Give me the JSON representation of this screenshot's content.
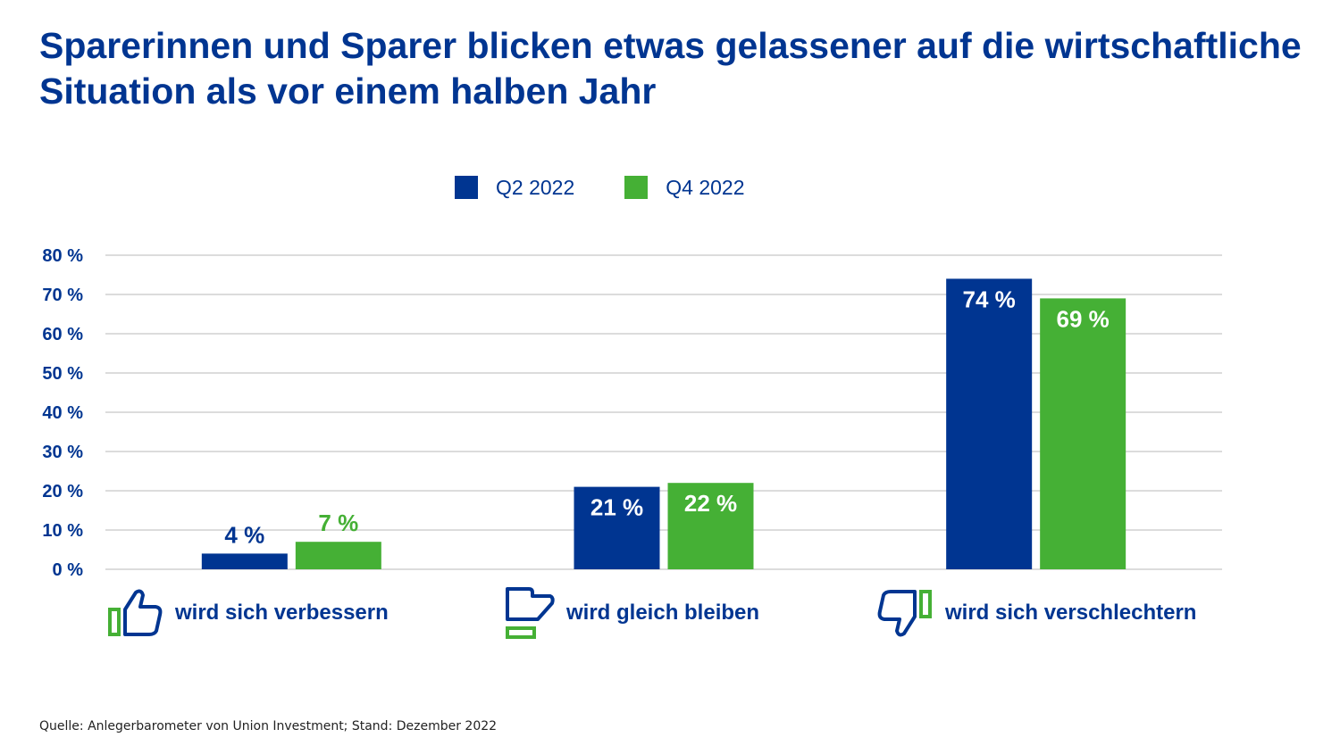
{
  "title": "Sparerinnen und Sparer blicken etwas gelassener auf die wirtschaftliche Situation als vor einem halben Jahr",
  "source": "Quelle: Anlegerbarometer von Union Investment; Stand: Dezember 2022",
  "colors": {
    "primary": "#003591",
    "secondary": "#45b035",
    "grid": "#c8c8c8"
  },
  "chart_data": {
    "type": "bar",
    "title": "Sparerinnen und Sparer blicken etwas gelassener auf die wirtschaftliche Situation als vor einem halben Jahr",
    "categories": [
      "wird sich verbessern",
      "wird gleich bleiben",
      "wird sich verschlechtern"
    ],
    "category_icons": [
      "thumbs-up-icon",
      "thumbs-sideways-icon",
      "thumbs-down-icon"
    ],
    "series": [
      {
        "name": "Q2 2022",
        "values": [
          4,
          21,
          74
        ],
        "labels": [
          "4 %",
          "21 %",
          "74 %"
        ],
        "color": "#003591"
      },
      {
        "name": "Q4 2022",
        "values": [
          7,
          22,
          69
        ],
        "labels": [
          "7 %",
          "22 %",
          "69 %"
        ],
        "color": "#45b035"
      }
    ],
    "ylim": [
      0,
      80
    ],
    "yticks": [
      0,
      10,
      20,
      30,
      40,
      50,
      60,
      70,
      80
    ],
    "ytick_labels": [
      "0 %",
      "10 %",
      "20 %",
      "30 %",
      "40 %",
      "50 %",
      "60 %",
      "70 %",
      "80 %"
    ],
    "grid": true,
    "legend_position": "top-center"
  }
}
